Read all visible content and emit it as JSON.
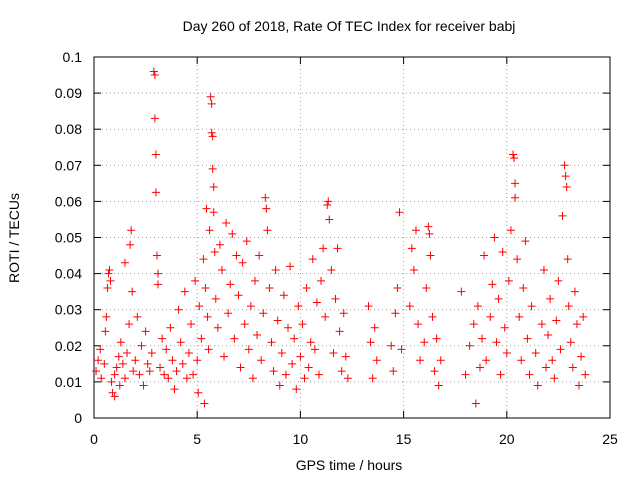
{
  "chart_data": {
    "type": "scatter",
    "title": "Day 260 of 2018, Rate Of TEC Index for receiver babj",
    "xlabel": "GPS time / hours",
    "ylabel": "ROTI / TECUs",
    "xlim": [
      0,
      25
    ],
    "ylim": [
      0,
      0.1
    ],
    "x_ticks": [
      0,
      5,
      10,
      15,
      20,
      25
    ],
    "x_tick_labels": [
      "0",
      "5",
      "10",
      "15",
      "20",
      "25"
    ],
    "y_ticks": [
      0,
      0.01,
      0.02,
      0.03,
      0.04,
      0.05,
      0.06,
      0.07,
      0.08,
      0.09,
      0.1
    ],
    "y_tick_labels": [
      "0",
      "0.01",
      "0.02",
      "0.03",
      "0.04",
      "0.05",
      "0.06",
      "0.07",
      "0.08",
      "0.09",
      "0.1"
    ],
    "grid": true,
    "legend": "none",
    "marker": "+",
    "series_color": "#ff0000",
    "points": [
      [
        0.1,
        0.013
      ],
      [
        0.2,
        0.016
      ],
      [
        0.3,
        0.019
      ],
      [
        0.35,
        0.011
      ],
      [
        0.5,
        0.015
      ],
      [
        0.55,
        0.024
      ],
      [
        0.6,
        0.028
      ],
      [
        0.65,
        0.036
      ],
      [
        0.7,
        0.04
      ],
      [
        0.75,
        0.041
      ],
      [
        0.8,
        0.038
      ],
      [
        0.85,
        0.01
      ],
      [
        0.9,
        0.007
      ],
      [
        1.0,
        0.012
      ],
      [
        1.0,
        0.006
      ],
      [
        1.1,
        0.014
      ],
      [
        1.2,
        0.017
      ],
      [
        1.25,
        0.009
      ],
      [
        1.3,
        0.021
      ],
      [
        1.4,
        0.015
      ],
      [
        1.5,
        0.011
      ],
      [
        1.5,
        0.043
      ],
      [
        1.6,
        0.018
      ],
      [
        1.7,
        0.026
      ],
      [
        1.75,
        0.048
      ],
      [
        1.8,
        0.052
      ],
      [
        1.85,
        0.035
      ],
      [
        1.9,
        0.013
      ],
      [
        2.0,
        0.016
      ],
      [
        2.1,
        0.028
      ],
      [
        2.2,
        0.012
      ],
      [
        2.3,
        0.02
      ],
      [
        2.4,
        0.009
      ],
      [
        2.5,
        0.024
      ],
      [
        2.6,
        0.015
      ],
      [
        2.7,
        0.013
      ],
      [
        2.8,
        0.018
      ],
      [
        2.9,
        0.096
      ],
      [
        2.95,
        0.095
      ],
      [
        2.95,
        0.083
      ],
      [
        3.0,
        0.073
      ],
      [
        3.0,
        0.0625
      ],
      [
        3.05,
        0.045
      ],
      [
        3.1,
        0.04
      ],
      [
        3.1,
        0.037
      ],
      [
        3.2,
        0.014
      ],
      [
        3.3,
        0.022
      ],
      [
        3.4,
        0.012
      ],
      [
        3.5,
        0.019
      ],
      [
        3.6,
        0.011
      ],
      [
        3.7,
        0.025
      ],
      [
        3.8,
        0.016
      ],
      [
        3.9,
        0.008
      ],
      [
        4.0,
        0.013
      ],
      [
        4.1,
        0.03
      ],
      [
        4.2,
        0.021
      ],
      [
        4.3,
        0.015
      ],
      [
        4.4,
        0.035
      ],
      [
        4.5,
        0.011
      ],
      [
        4.6,
        0.018
      ],
      [
        4.7,
        0.026
      ],
      [
        4.8,
        0.012
      ],
      [
        4.9,
        0.038
      ],
      [
        5.0,
        0.016
      ],
      [
        5.05,
        0.007
      ],
      [
        5.1,
        0.031
      ],
      [
        5.2,
        0.022
      ],
      [
        5.3,
        0.044
      ],
      [
        5.35,
        0.004
      ],
      [
        5.4,
        0.036
      ],
      [
        5.45,
        0.058
      ],
      [
        5.5,
        0.028
      ],
      [
        5.55,
        0.019
      ],
      [
        5.6,
        0.052
      ],
      [
        5.65,
        0.089
      ],
      [
        5.7,
        0.087
      ],
      [
        5.7,
        0.079
      ],
      [
        5.75,
        0.078
      ],
      [
        5.75,
        0.069
      ],
      [
        5.8,
        0.064
      ],
      [
        5.8,
        0.057
      ],
      [
        5.85,
        0.046
      ],
      [
        5.9,
        0.033
      ],
      [
        6.0,
        0.025
      ],
      [
        6.1,
        0.048
      ],
      [
        6.2,
        0.041
      ],
      [
        6.3,
        0.017
      ],
      [
        6.4,
        0.054
      ],
      [
        6.5,
        0.029
      ],
      [
        6.6,
        0.037
      ],
      [
        6.7,
        0.051
      ],
      [
        6.8,
        0.022
      ],
      [
        6.9,
        0.045
      ],
      [
        7.0,
        0.034
      ],
      [
        7.1,
        0.014
      ],
      [
        7.2,
        0.043
      ],
      [
        7.3,
        0.026
      ],
      [
        7.4,
        0.049
      ],
      [
        7.5,
        0.019
      ],
      [
        7.6,
        0.031
      ],
      [
        7.7,
        0.011
      ],
      [
        7.8,
        0.038
      ],
      [
        7.9,
        0.023
      ],
      [
        8.0,
        0.045
      ],
      [
        8.1,
        0.016
      ],
      [
        8.2,
        0.029
      ],
      [
        8.3,
        0.061
      ],
      [
        8.35,
        0.058
      ],
      [
        8.4,
        0.052
      ],
      [
        8.5,
        0.036
      ],
      [
        8.6,
        0.021
      ],
      [
        8.7,
        0.013
      ],
      [
        8.8,
        0.041
      ],
      [
        8.9,
        0.027
      ],
      [
        9.0,
        0.009
      ],
      [
        9.1,
        0.018
      ],
      [
        9.2,
        0.034
      ],
      [
        9.3,
        0.012
      ],
      [
        9.4,
        0.025
      ],
      [
        9.5,
        0.042
      ],
      [
        9.6,
        0.015
      ],
      [
        9.7,
        0.022
      ],
      [
        9.8,
        0.008
      ],
      [
        9.9,
        0.031
      ],
      [
        10.0,
        0.017
      ],
      [
        10.1,
        0.026
      ],
      [
        10.2,
        0.011
      ],
      [
        10.3,
        0.036
      ],
      [
        10.4,
        0.014
      ],
      [
        10.5,
        0.021
      ],
      [
        10.6,
        0.044
      ],
      [
        10.7,
        0.019
      ],
      [
        10.8,
        0.032
      ],
      [
        10.9,
        0.012
      ],
      [
        11.0,
        0.038
      ],
      [
        11.1,
        0.047
      ],
      [
        11.2,
        0.028
      ],
      [
        11.3,
        0.059
      ],
      [
        11.35,
        0.06
      ],
      [
        11.4,
        0.055
      ],
      [
        11.5,
        0.041
      ],
      [
        11.6,
        0.018
      ],
      [
        11.7,
        0.033
      ],
      [
        11.8,
        0.047
      ],
      [
        11.9,
        0.024
      ],
      [
        12.0,
        0.013
      ],
      [
        12.1,
        0.029
      ],
      [
        12.2,
        0.017
      ],
      [
        12.3,
        0.011
      ],
      [
        13.3,
        0.031
      ],
      [
        13.4,
        0.021
      ],
      [
        13.5,
        0.011
      ],
      [
        13.6,
        0.025
      ],
      [
        13.7,
        0.016
      ],
      [
        14.4,
        0.02
      ],
      [
        14.5,
        0.013
      ],
      [
        14.6,
        0.029
      ],
      [
        14.7,
        0.036
      ],
      [
        14.8,
        0.057
      ],
      [
        14.9,
        0.019
      ],
      [
        15.3,
        0.031
      ],
      [
        15.4,
        0.047
      ],
      [
        15.5,
        0.041
      ],
      [
        15.6,
        0.052
      ],
      [
        15.7,
        0.026
      ],
      [
        15.8,
        0.016
      ],
      [
        16.0,
        0.021
      ],
      [
        16.1,
        0.036
      ],
      [
        16.2,
        0.053
      ],
      [
        16.25,
        0.051
      ],
      [
        16.3,
        0.045
      ],
      [
        16.4,
        0.028
      ],
      [
        16.5,
        0.013
      ],
      [
        16.6,
        0.022
      ],
      [
        16.7,
        0.009
      ],
      [
        16.8,
        0.016
      ],
      [
        17.8,
        0.035
      ],
      [
        18.0,
        0.012
      ],
      [
        18.2,
        0.02
      ],
      [
        18.4,
        0.026
      ],
      [
        18.5,
        0.004
      ],
      [
        18.6,
        0.031
      ],
      [
        18.7,
        0.014
      ],
      [
        18.8,
        0.022
      ],
      [
        18.9,
        0.045
      ],
      [
        19.0,
        0.016
      ],
      [
        19.2,
        0.028
      ],
      [
        19.3,
        0.037
      ],
      [
        19.4,
        0.05
      ],
      [
        19.5,
        0.021
      ],
      [
        19.6,
        0.033
      ],
      [
        19.7,
        0.012
      ],
      [
        19.8,
        0.046
      ],
      [
        19.9,
        0.025
      ],
      [
        20.0,
        0.018
      ],
      [
        20.1,
        0.038
      ],
      [
        20.2,
        0.052
      ],
      [
        20.3,
        0.073
      ],
      [
        20.35,
        0.072
      ],
      [
        20.4,
        0.065
      ],
      [
        20.4,
        0.061
      ],
      [
        20.5,
        0.044
      ],
      [
        20.6,
        0.028
      ],
      [
        20.7,
        0.016
      ],
      [
        20.8,
        0.036
      ],
      [
        20.9,
        0.049
      ],
      [
        21.0,
        0.022
      ],
      [
        21.1,
        0.012
      ],
      [
        21.2,
        0.031
      ],
      [
        21.4,
        0.018
      ],
      [
        21.5,
        0.009
      ],
      [
        21.7,
        0.026
      ],
      [
        21.8,
        0.041
      ],
      [
        21.9,
        0.014
      ],
      [
        22.0,
        0.023
      ],
      [
        22.1,
        0.033
      ],
      [
        22.2,
        0.016
      ],
      [
        22.3,
        0.011
      ],
      [
        22.4,
        0.027
      ],
      [
        22.5,
        0.038
      ],
      [
        22.6,
        0.019
      ],
      [
        22.7,
        0.056
      ],
      [
        22.8,
        0.07
      ],
      [
        22.85,
        0.067
      ],
      [
        22.9,
        0.064
      ],
      [
        22.95,
        0.044
      ],
      [
        23.0,
        0.031
      ],
      [
        23.1,
        0.021
      ],
      [
        23.2,
        0.014
      ],
      [
        23.3,
        0.035
      ],
      [
        23.4,
        0.026
      ],
      [
        23.5,
        0.009
      ],
      [
        23.6,
        0.017
      ],
      [
        23.7,
        0.028
      ],
      [
        23.8,
        0.012
      ]
    ]
  }
}
